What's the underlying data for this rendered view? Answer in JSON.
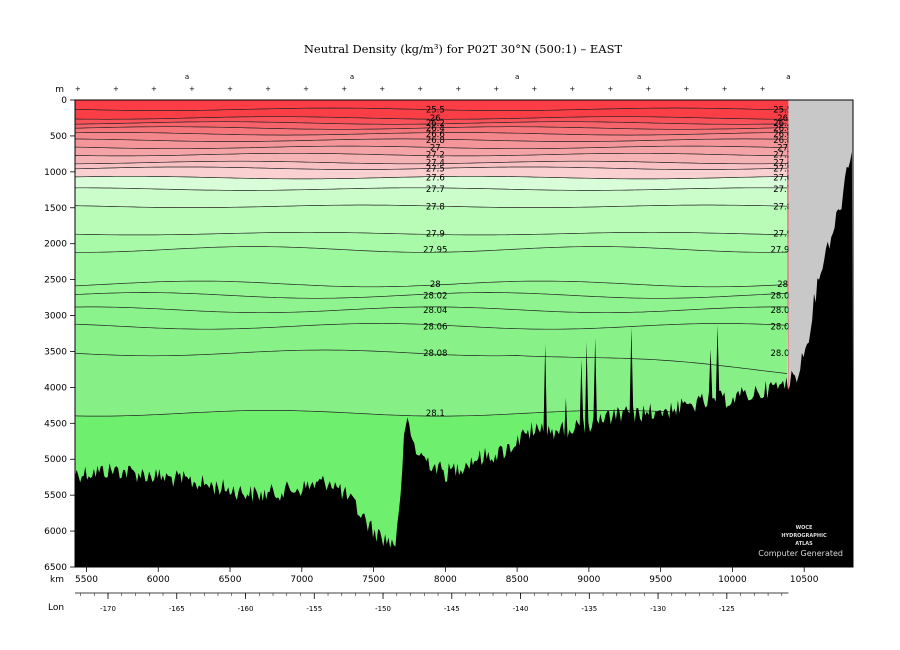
{
  "chart_data": {
    "type": "contour section",
    "title": "Neutral Density (kg/m³) for P02T 30°N (500:1) – EAST",
    "y_axis": {
      "unit": "m",
      "range": [
        0,
        6500
      ],
      "ticks": [
        0,
        500,
        1000,
        1500,
        2000,
        2500,
        3000,
        3500,
        4000,
        4500,
        5000,
        5500,
        6000,
        6500
      ],
      "direction": "down"
    },
    "x_axis": {
      "unit": "km",
      "range": [
        5420,
        10840
      ],
      "ticks": [
        5500,
        6000,
        6500,
        7000,
        7500,
        8000,
        8500,
        9000,
        9500,
        10000,
        10500
      ]
    },
    "lon_axis": {
      "label": "Lon",
      "ticks": [
        "-170",
        "-165",
        "-160",
        "-155",
        "-150",
        "-145",
        "-140",
        "-135",
        "-130",
        "-125"
      ]
    },
    "top_markers": [
      "a",
      "a",
      "a",
      "a",
      "a"
    ],
    "contours": [
      {
        "label": "25.5",
        "depth": 130,
        "color": "#fa3e46"
      },
      {
        "label": "26",
        "depth": 250,
        "color": "#f95159"
      },
      {
        "label": "26.2",
        "depth": 320,
        "color": "#f7636a"
      },
      {
        "label": "26.4",
        "depth": 390,
        "color": "#f6757b"
      },
      {
        "label": "26.6",
        "depth": 470,
        "color": "#f4878c"
      },
      {
        "label": "26.8",
        "depth": 560,
        "color": "#f39599"
      },
      {
        "label": "27",
        "depth": 660,
        "color": "#f4a4a7"
      },
      {
        "label": "27.2",
        "depth": 760,
        "color": "#f6b3b5"
      },
      {
        "label": "27.4",
        "depth": 870,
        "color": "#f8c1c3"
      },
      {
        "label": "27.5",
        "depth": 950,
        "color": "#fad0d1"
      },
      {
        "label": "27.6",
        "depth": 1080,
        "color": "#d8fdd8"
      },
      {
        "label": "27.7",
        "depth": 1240,
        "color": "#cafdca"
      },
      {
        "label": "27.8",
        "depth": 1480,
        "color": "#b8fcb8"
      },
      {
        "label": "27.9",
        "depth": 1860,
        "color": "#a8faa8"
      },
      {
        "label": "27.95",
        "depth": 2080,
        "color": "#9cf89c"
      },
      {
        "label": "28",
        "depth": 2560,
        "color": "#93f693"
      },
      {
        "label": "28.02",
        "depth": 2720,
        "color": "#8ff48f"
      },
      {
        "label": "28.04",
        "depth": 2920,
        "color": "#8bf38b"
      },
      {
        "label": "28.06",
        "depth": 3150,
        "color": "#88f288"
      },
      {
        "label": "28.08",
        "depth": 3520,
        "color": "#86f086"
      },
      {
        "label": "28.1",
        "depth": 4360,
        "color": "#6ef06e"
      }
    ],
    "watermark": [
      "WOCE",
      "HYDROGRAPHIC",
      "ATLAS"
    ],
    "footer": "Computer Generated"
  }
}
